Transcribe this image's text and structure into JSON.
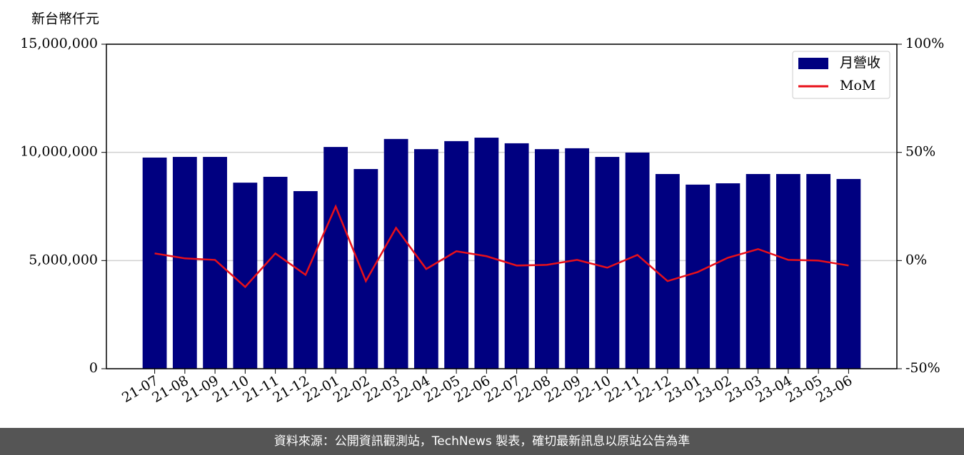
{
  "chart_data": {
    "type": "bar",
    "y_label": "新台幣仟元",
    "categories": [
      "21-07",
      "21-08",
      "21-09",
      "21-10",
      "21-11",
      "21-12",
      "22-01",
      "22-02",
      "22-03",
      "22-04",
      "22-05",
      "22-06",
      "22-07",
      "22-08",
      "22-09",
      "22-10",
      "22-11",
      "22-12",
      "23-01",
      "23-02",
      "23-03",
      "23-04",
      "23-05",
      "23-06"
    ],
    "series": [
      {
        "name": "月營收",
        "type": "bar",
        "color": "#000080",
        "values": [
          9760000,
          9790000,
          9790000,
          8600000,
          8870000,
          8210000,
          10250000,
          9230000,
          10620000,
          10150000,
          10520000,
          10680000,
          10420000,
          10150000,
          10190000,
          9790000,
          9990000,
          9000000,
          8510000,
          8570000,
          9000000,
          9000000,
          9000000,
          8770000
        ]
      },
      {
        "name": "MoM",
        "type": "line",
        "axis": "y2",
        "color": "#e8101a",
        "values": [
          3.3,
          1.0,
          0.3,
          -12.2,
          3.3,
          -6.6,
          25.0,
          -9.5,
          15.1,
          -3.9,
          4.3,
          2.0,
          -2.3,
          -2.0,
          0.3,
          -3.3,
          2.6,
          -9.5,
          -5.3,
          1.3,
          5.3,
          0.3,
          0,
          -2.3
        ]
      }
    ],
    "ylim": [
      0,
      15000000
    ],
    "yticks": [
      0,
      {
        "value": 5000000,
        "label": "5,000,000"
      },
      {
        "value": 10000000,
        "label": "10,000,000"
      },
      {
        "value": 15000000,
        "label": "15,000,000"
      }
    ],
    "y2lim": [
      -50,
      100
    ],
    "y2ticks": [
      {
        "value": -50,
        "label": "-50%"
      },
      {
        "value": 0,
        "label": "0%"
      },
      {
        "value": 50,
        "label": "50%"
      },
      {
        "value": 100,
        "label": "100%"
      }
    ],
    "grid": true,
    "legend": "upper right",
    "footer": "資料來源：公開資訊觀測站，TechNews 製表，確切最新訊息以原站公告為準"
  }
}
